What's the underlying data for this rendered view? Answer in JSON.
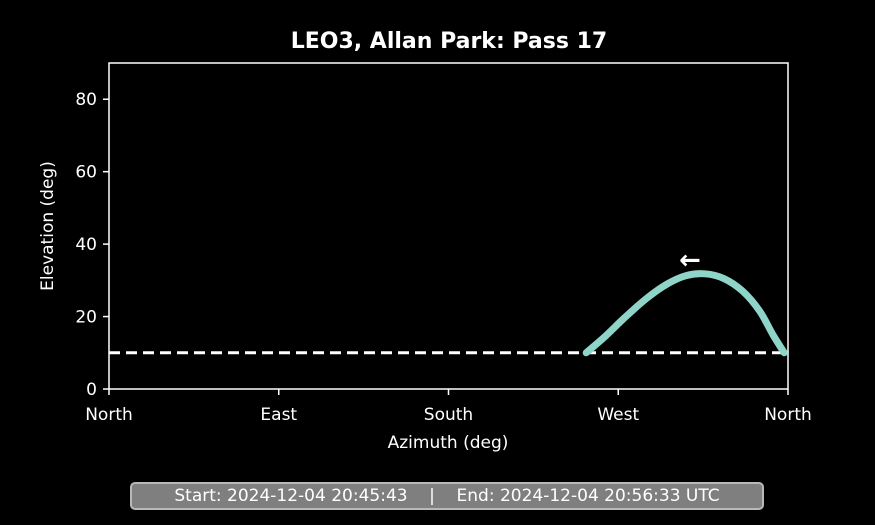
{
  "chart_data": {
    "type": "line",
    "title": "LEO3, Allan Park: Pass 17",
    "xlabel": "Azimuth (deg)",
    "ylabel": "Elevation (deg)",
    "xlim": [
      0,
      360
    ],
    "ylim": [
      0,
      90
    ],
    "x_ticks": [
      {
        "value": 0,
        "label": "North"
      },
      {
        "value": 90,
        "label": "East"
      },
      {
        "value": 180,
        "label": "South"
      },
      {
        "value": 270,
        "label": "West"
      },
      {
        "value": 360,
        "label": "North"
      }
    ],
    "y_ticks": [
      {
        "value": 0,
        "label": "0"
      },
      {
        "value": 20,
        "label": "20"
      },
      {
        "value": 40,
        "label": "40"
      },
      {
        "value": 60,
        "label": "60"
      },
      {
        "value": 80,
        "label": "80"
      }
    ],
    "threshold_elevation": 10,
    "series": [
      {
        "color": "#8fd4c8",
        "points": [
          [
            358,
            10
          ],
          [
            352,
            15
          ],
          [
            345,
            21.5
          ],
          [
            336,
            27
          ],
          [
            326,
            30.5
          ],
          [
            316,
            31.8
          ],
          [
            306,
            31.3
          ],
          [
            296,
            29
          ],
          [
            285,
            25
          ],
          [
            273,
            19.5
          ],
          [
            263,
            14.5
          ],
          [
            253,
            10
          ]
        ]
      }
    ],
    "direction_arrow": {
      "x": 308,
      "y": 35.5,
      "symbol": "←"
    },
    "grid": false
  },
  "footer": {
    "text": "Start: 2024-12-04 20:45:43    |    End: 2024-12-04 20:56:33 UTC"
  }
}
